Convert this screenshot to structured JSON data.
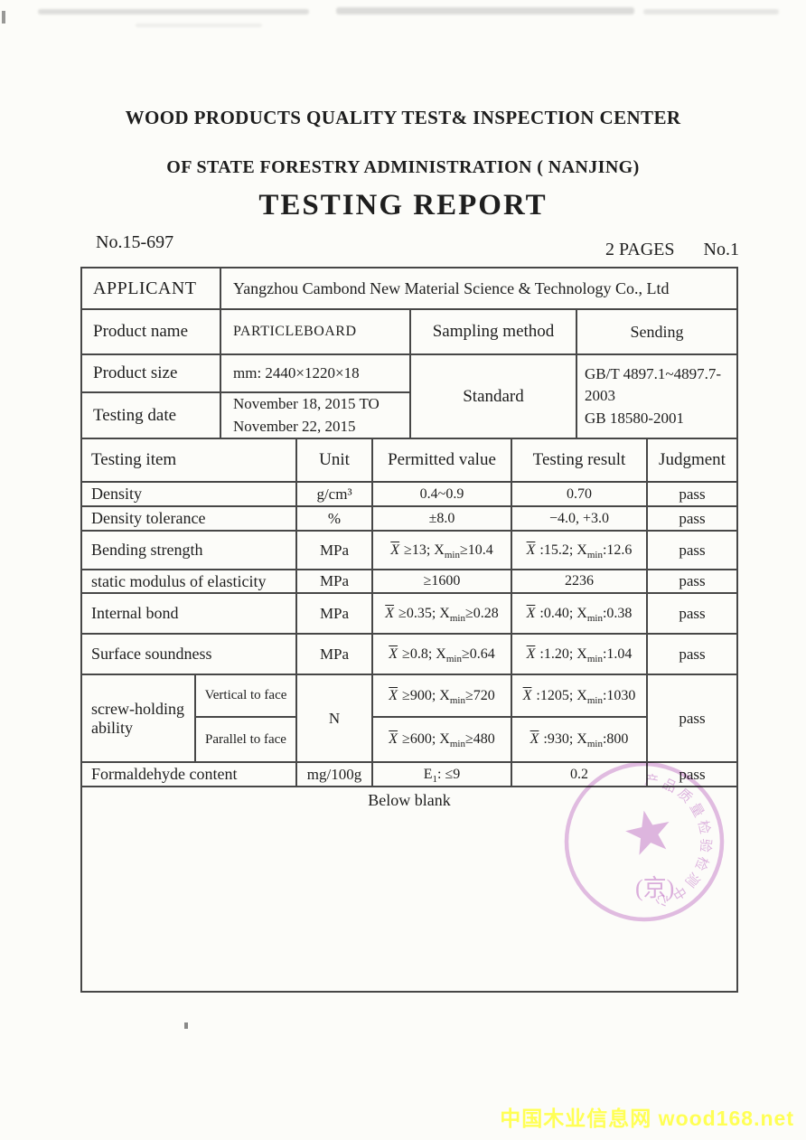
{
  "header": {
    "org_line1": "WOOD PRODUCTS QUALITY TEST& INSPECTION CENTER",
    "org_line2": "OF STATE FORESTRY ADMINISTRATION ( NANJING)",
    "doc_title": "TESTING REPORT",
    "report_no": "No.15-697",
    "pages_label": "2 PAGES",
    "page_label": "No.1"
  },
  "info": {
    "applicant": {
      "label": "APPLICANT",
      "value": "Yangzhou Cambond New Material Science & Technology Co., Ltd"
    },
    "product_name": {
      "label": "Product name",
      "value": "PARTICLEBOARD"
    },
    "sampling_method": {
      "label": "Sampling method",
      "value": "Sending"
    },
    "product_size": {
      "label": "Product size",
      "value": "mm: 2440×1220×18"
    },
    "testing_date": {
      "label": "Testing date",
      "value_line1": "November 18, 2015 TO",
      "value_line2": "November 22, 2015"
    },
    "standard": {
      "label": "Standard",
      "value_line1": "GB/T 4897.1~4897.7-2003",
      "value_line2": "GB 18580-2001"
    }
  },
  "tests": {
    "headers": {
      "item": "Testing item",
      "unit": "Unit",
      "permitted": "Permitted value",
      "result": "Testing result",
      "judgment": "Judgment"
    },
    "rows": [
      {
        "item": "Density",
        "unit": "g/cm³",
        "permitted": "0.4~0.9",
        "result": "0.70",
        "judgment": "pass"
      },
      {
        "item": "Density tolerance",
        "unit": "%",
        "permitted": "±8.0",
        "result": "−4.0,  +3.0",
        "judgment": "pass"
      },
      {
        "item": "Bending strength",
        "unit": "MPa",
        "permitted": "{X} ≥13;  X{m}≥10.4",
        "result": "{X} :15.2;  X{m}:12.6",
        "judgment": "pass"
      },
      {
        "item": "static modulus of elasticity",
        "unit": "MPa",
        "permitted": "≥1600",
        "result": "2236",
        "judgment": "pass"
      },
      {
        "item": "Internal bond",
        "unit": "MPa",
        "permitted": "{X} ≥0.35;  X{m}≥0.28",
        "result": "{X} :0.40;  X{m}:0.38",
        "judgment": "pass"
      },
      {
        "item": "Surface soundness",
        "unit": "MPa",
        "permitted": "{X} ≥0.8;  X{m}≥0.64",
        "result": "{X} :1.20;  X{m}:1.04",
        "judgment": "pass"
      }
    ],
    "screw_holding": {
      "item": "screw-holding ability",
      "unit": "N",
      "judgment": "pass",
      "vertical": {
        "label": "Vertical to face",
        "permitted": "{X} ≥900;  X{m}≥720",
        "result": "{X} :1205;  X{m}:1030"
      },
      "parallel": {
        "label": "Parallel to face",
        "permitted": "{X} ≥600;  X{m}≥480",
        "result": "{X} :930;  X{m}:800"
      }
    },
    "formaldehyde": {
      "item": "Formaldehyde content",
      "unit": "mg/100g",
      "permitted": "E{1}:  ≤9",
      "result": "0.2",
      "judgment": "pass"
    },
    "footer_note": "Below blank"
  },
  "stamp": {
    "arc_text": "产品质量检验检测中心",
    "bottom_text": "(京)",
    "color": "#c06cc8"
  },
  "watermark": {
    "text": "中国木业信息网 wood168.net",
    "color": "#ffff55"
  }
}
